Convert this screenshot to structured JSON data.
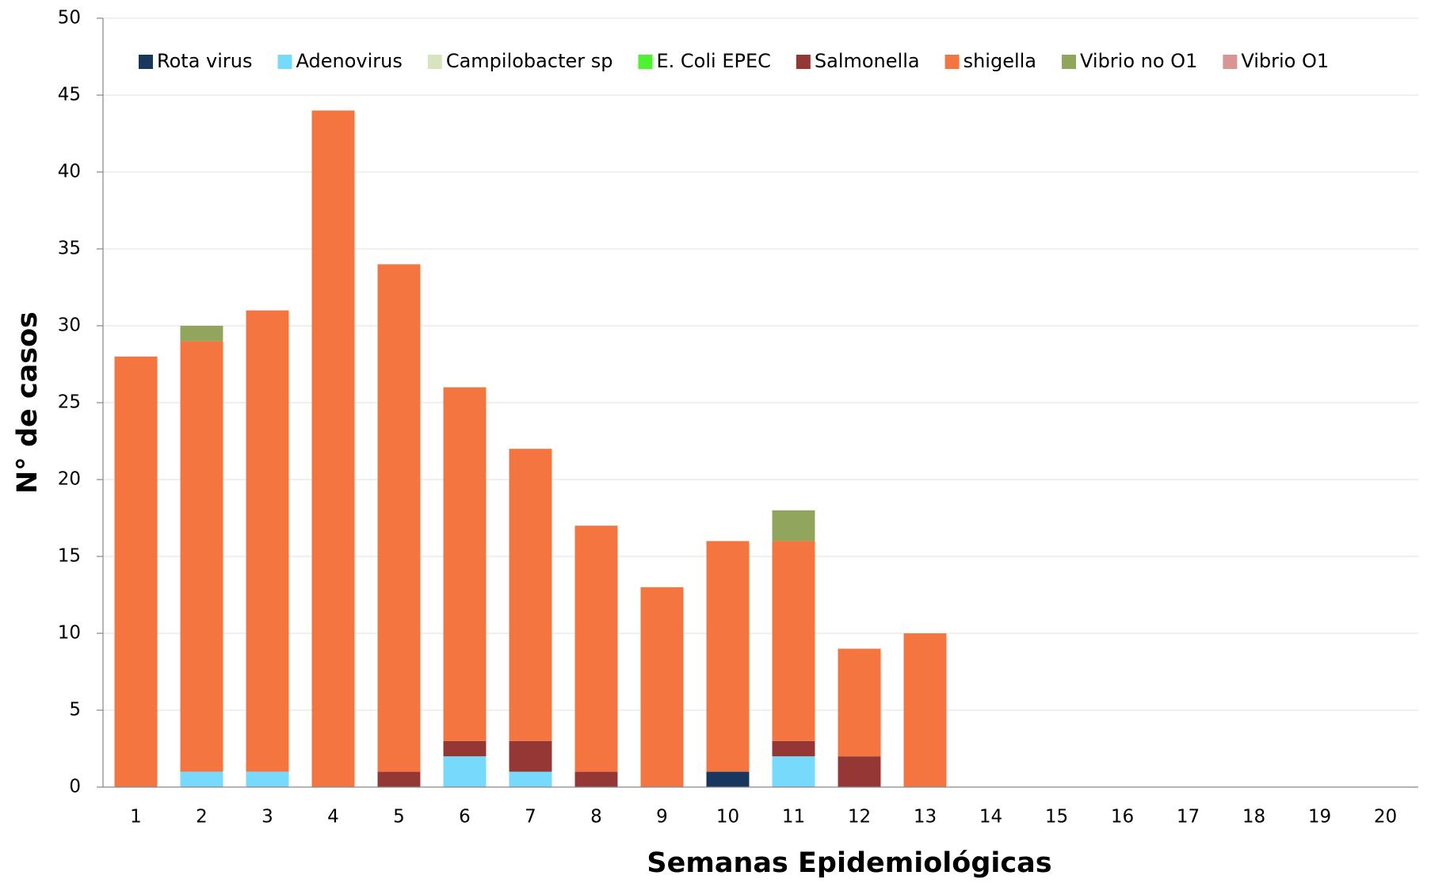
{
  "chart_data": {
    "type": "bar",
    "stacked": true,
    "xlabel": "Semanas Epidemiológicas",
    "ylabel": "N° de casos",
    "categories": [
      "1",
      "2",
      "3",
      "4",
      "5",
      "6",
      "7",
      "8",
      "9",
      "10",
      "11",
      "12",
      "13",
      "14",
      "15",
      "16",
      "17",
      "18",
      "19",
      "20"
    ],
    "series": [
      {
        "name": "Rota virus",
        "color": "#17375e",
        "values": [
          0,
          0,
          0,
          0,
          0,
          0,
          0,
          0,
          0,
          1,
          0,
          0,
          0,
          0,
          0,
          0,
          0,
          0,
          0,
          0
        ]
      },
      {
        "name": "Adenovirus",
        "color": "#77d9fb",
        "values": [
          0,
          1,
          1,
          0,
          0,
          2,
          1,
          0,
          0,
          0,
          2,
          0,
          0,
          0,
          0,
          0,
          0,
          0,
          0,
          0
        ]
      },
      {
        "name": "Campilobacter sp",
        "color": "#d7e4bd",
        "values": [
          0,
          0,
          0,
          0,
          0,
          0,
          0,
          0,
          0,
          0,
          0,
          0,
          0,
          0,
          0,
          0,
          0,
          0,
          0,
          0
        ]
      },
      {
        "name": "E. Coli EPEC",
        "color": "#4df230",
        "values": [
          0,
          0,
          0,
          0,
          0,
          0,
          0,
          0,
          0,
          0,
          0,
          0,
          0,
          0,
          0,
          0,
          0,
          0,
          0,
          0
        ]
      },
      {
        "name": "Salmonella",
        "color": "#953735",
        "values": [
          0,
          0,
          0,
          0,
          1,
          1,
          2,
          1,
          0,
          0,
          1,
          2,
          0,
          0,
          0,
          0,
          0,
          0,
          0,
          0
        ]
      },
      {
        "name": "shigella",
        "color": "#f57540",
        "values": [
          28,
          28,
          30,
          44,
          33,
          23,
          19,
          16,
          13,
          15,
          13,
          7,
          10,
          0,
          0,
          0,
          0,
          0,
          0,
          0
        ]
      },
      {
        "name": "Vibrio no O1",
        "color": "#92a55c",
        "values": [
          0,
          1,
          0,
          0,
          0,
          0,
          0,
          0,
          0,
          0,
          2,
          0,
          0,
          0,
          0,
          0,
          0,
          0,
          0,
          0
        ]
      },
      {
        "name": "Vibrio O1",
        "color": "#d99594",
        "values": [
          0,
          0,
          0,
          0,
          0,
          0,
          0,
          0,
          0,
          0,
          0,
          0,
          0,
          0,
          0,
          0,
          0,
          0,
          0,
          0
        ]
      }
    ],
    "ylim": [
      0,
      50
    ],
    "yticks": [
      0,
      5,
      10,
      15,
      20,
      25,
      30,
      35,
      40,
      45,
      50
    ],
    "grid": true,
    "legend": "top"
  }
}
